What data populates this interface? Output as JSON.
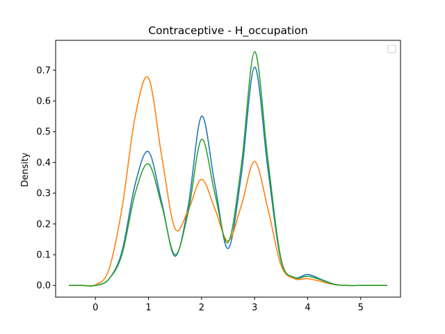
{
  "chart_data": {
    "type": "line",
    "title": "Contraceptive - H_occupation",
    "xlabel": "",
    "ylabel": "Density",
    "xlim": [
      -0.75,
      5.75
    ],
    "ylim": [
      -0.038,
      0.797
    ],
    "xticks": [
      0,
      1,
      2,
      3,
      4,
      5
    ],
    "xtick_labels": [
      "0",
      "1",
      "2",
      "3",
      "4",
      "5"
    ],
    "yticks": [
      0.0,
      0.1,
      0.2,
      0.3,
      0.4,
      0.5,
      0.6,
      0.7
    ],
    "ytick_labels": [
      "0.0",
      "0.1",
      "0.2",
      "0.3",
      "0.4",
      "0.5",
      "0.6",
      "0.7"
    ],
    "grid": false,
    "legend": {
      "placement": "top-right",
      "entries": []
    },
    "x": [
      -0.5,
      -0.25,
      0,
      0.25,
      0.5,
      0.75,
      1,
      1.25,
      1.5,
      1.75,
      2,
      2.25,
      2.5,
      2.75,
      3,
      3.25,
      3.5,
      3.75,
      4,
      4.25,
      4.5,
      4.75,
      5,
      5.25,
      5.5
    ],
    "series": [
      {
        "color": "#1f77b4",
        "values": [
          0.0,
          0.0,
          0.0,
          0.02,
          0.11,
          0.33,
          0.435,
          0.27,
          0.095,
          0.26,
          0.55,
          0.33,
          0.12,
          0.36,
          0.71,
          0.38,
          0.08,
          0.026,
          0.036,
          0.02,
          0.004,
          0.0,
          0.0,
          0.0,
          0.0
        ]
      },
      {
        "color": "#ff7f0e",
        "values": [
          0.0,
          0.0,
          0.002,
          0.05,
          0.25,
          0.55,
          0.675,
          0.42,
          0.185,
          0.245,
          0.345,
          0.25,
          0.145,
          0.26,
          0.403,
          0.25,
          0.065,
          0.022,
          0.022,
          0.013,
          0.003,
          0.0,
          0.0,
          0.0,
          0.0
        ]
      },
      {
        "color": "#2ca02c",
        "values": [
          0.0,
          0.0,
          0.0,
          0.02,
          0.1,
          0.3,
          0.395,
          0.26,
          0.1,
          0.24,
          0.475,
          0.3,
          0.14,
          0.39,
          0.76,
          0.41,
          0.085,
          0.026,
          0.03,
          0.018,
          0.003,
          0.0,
          0.0,
          0.0,
          0.0
        ]
      }
    ]
  }
}
